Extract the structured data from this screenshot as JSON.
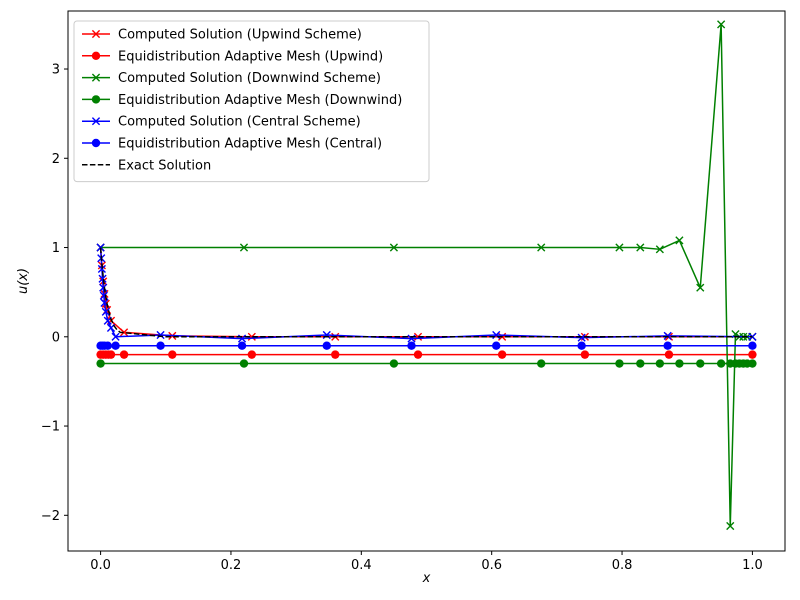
{
  "chart_data": {
    "type": "line",
    "title": "",
    "xlabel": "x",
    "ylabel": "u(x)",
    "xlim": [
      -0.05,
      1.05
    ],
    "ylim": [
      -2.4,
      3.65
    ],
    "xticks": [
      0.0,
      0.2,
      0.4,
      0.6,
      0.8,
      1.0
    ],
    "xtick_labels": [
      "0.0",
      "0.2",
      "0.4",
      "0.6",
      "0.8",
      "1.0"
    ],
    "yticks": [
      -2,
      -1,
      0,
      1,
      2,
      3
    ],
    "ytick_labels": [
      "−2",
      "−1",
      "0",
      "1",
      "2",
      "3"
    ],
    "grid": false,
    "legend_position": "top-left",
    "series": [
      {
        "name": "Computed Solution (Upwind Scheme)",
        "color": "#ff0000",
        "marker": "x",
        "linestyle": "solid",
        "x": [
          0.0,
          0.002,
          0.004,
          0.006,
          0.008,
          0.01,
          0.016,
          0.036,
          0.11,
          0.232,
          0.36,
          0.487,
          0.616,
          0.743,
          0.872,
          1.0
        ],
        "y": [
          1.0,
          0.8,
          0.62,
          0.48,
          0.37,
          0.3,
          0.18,
          0.05,
          0.01,
          0.0,
          0.0,
          0.0,
          0.0,
          0.0,
          0.0,
          0.0
        ]
      },
      {
        "name": "Equidistribution Adaptive Mesh (Upwind)",
        "color": "#ff0000",
        "marker": "o",
        "linestyle": "solid",
        "x": [
          0.0,
          0.004,
          0.008,
          0.012,
          0.016,
          0.036,
          0.11,
          0.232,
          0.36,
          0.487,
          0.616,
          0.743,
          0.872,
          1.0
        ],
        "y": [
          -0.2,
          -0.2,
          -0.2,
          -0.2,
          -0.2,
          -0.2,
          -0.2,
          -0.2,
          -0.2,
          -0.2,
          -0.2,
          -0.2,
          -0.2,
          -0.2
        ]
      },
      {
        "name": "Computed Solution (Downwind Scheme)",
        "color": "#008000",
        "marker": "x",
        "linestyle": "solid",
        "x": [
          0.0,
          0.22,
          0.45,
          0.676,
          0.796,
          0.828,
          0.858,
          0.888,
          0.92,
          0.952,
          0.966,
          0.974,
          0.98,
          0.986,
          0.992,
          1.0
        ],
        "y": [
          1.0,
          1.0,
          1.0,
          1.0,
          1.0,
          1.0,
          0.98,
          1.08,
          0.55,
          3.5,
          -2.12,
          0.03,
          0.0,
          0.0,
          0.0,
          0.0
        ]
      },
      {
        "name": "Equidistribution Adaptive Mesh (Downwind)",
        "color": "#008000",
        "marker": "o",
        "linestyle": "solid",
        "x": [
          0.0,
          0.22,
          0.45,
          0.676,
          0.796,
          0.828,
          0.858,
          0.888,
          0.92,
          0.952,
          0.966,
          0.974,
          0.98,
          0.986,
          0.992,
          1.0
        ],
        "y": [
          -0.3,
          -0.3,
          -0.3,
          -0.3,
          -0.3,
          -0.3,
          -0.3,
          -0.3,
          -0.3,
          -0.3,
          -0.3,
          -0.3,
          -0.3,
          -0.3,
          -0.3,
          -0.3
        ]
      },
      {
        "name": "Computed Solution (Central Scheme)",
        "color": "#0000ff",
        "marker": "x",
        "linestyle": "solid",
        "x": [
          0.0,
          0.001,
          0.002,
          0.003,
          0.004,
          0.005,
          0.006,
          0.008,
          0.011,
          0.016,
          0.023,
          0.092,
          0.217,
          0.347,
          0.477,
          0.607,
          0.738,
          0.87,
          1.0
        ],
        "y": [
          1.0,
          0.88,
          0.76,
          0.65,
          0.55,
          0.46,
          0.38,
          0.28,
          0.18,
          0.1,
          0.0,
          0.02,
          -0.02,
          0.02,
          -0.02,
          0.02,
          -0.01,
          0.01,
          0.0
        ]
      },
      {
        "name": "Equidistribution Adaptive Mesh (Central)",
        "color": "#0000ff",
        "marker": "o",
        "linestyle": "solid",
        "x": [
          0.0,
          0.003,
          0.006,
          0.011,
          0.023,
          0.092,
          0.217,
          0.347,
          0.477,
          0.607,
          0.738,
          0.87,
          1.0
        ],
        "y": [
          -0.1,
          -0.1,
          -0.1,
          -0.1,
          -0.1,
          -0.1,
          -0.1,
          -0.1,
          -0.1,
          -0.1,
          -0.1,
          -0.1,
          -0.1
        ]
      },
      {
        "name": "Exact Solution",
        "color": "#000000",
        "marker": "none",
        "linestyle": "dashed",
        "x": [
          0.0,
          0.002,
          0.004,
          0.006,
          0.008,
          0.01,
          0.012,
          0.014,
          0.016,
          0.02,
          0.025,
          0.03,
          0.1,
          0.3,
          0.5,
          0.7,
          0.9,
          1.0
        ],
        "y": [
          1.0,
          0.82,
          0.67,
          0.55,
          0.45,
          0.37,
          0.3,
          0.25,
          0.2,
          0.13,
          0.08,
          0.05,
          0.0,
          0.0,
          0.0,
          0.0,
          0.0,
          0.0
        ]
      }
    ]
  }
}
